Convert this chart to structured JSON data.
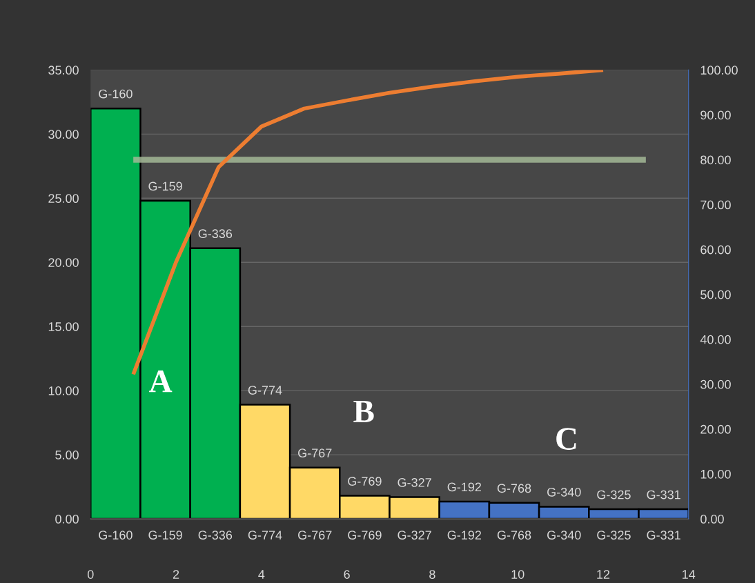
{
  "chart_data": [
    {
      "type": "bar",
      "categories": [
        "G-160",
        "G-159",
        "G-336",
        "G-774",
        "G-767",
        "G-769",
        "G-327",
        "G-192",
        "G-768",
        "G-340",
        "G-325",
        "G-331"
      ],
      "values": [
        32.0,
        24.8,
        21.1,
        8.9,
        4.0,
        1.8,
        1.7,
        1.35,
        1.25,
        0.95,
        0.75,
        0.75
      ],
      "colors": [
        "#00b050",
        "#00b050",
        "#00b050",
        "#ffd966",
        "#ffd966",
        "#ffd966",
        "#ffd966",
        "#4472c4",
        "#4472c4",
        "#4472c4",
        "#4472c4",
        "#4472c4"
      ],
      "value_labels": [
        "G-160",
        "G-159",
        "G-336",
        "G-774",
        "G-767",
        "G-769",
        "G-327",
        "G-192",
        "G-768",
        "G-340",
        "G-325",
        "G-331"
      ],
      "ylim": [
        0,
        35
      ],
      "yticks": [
        {
          "value": 0,
          "label": "0.00"
        },
        {
          "value": 5,
          "label": "5.00"
        },
        {
          "value": 10,
          "label": "10.00"
        },
        {
          "value": 15,
          "label": "15.00"
        },
        {
          "value": 20,
          "label": "20.00"
        },
        {
          "value": 25,
          "label": "25.00"
        },
        {
          "value": 30,
          "label": "30.00"
        },
        {
          "value": 35,
          "label": "35.00"
        }
      ],
      "grid": "y",
      "annotations": [
        "A",
        "B",
        "C"
      ]
    },
    {
      "type": "line",
      "series": [
        {
          "color": "#ed7d31",
          "x": [
            1,
            2,
            3,
            4,
            5,
            6,
            7,
            8,
            9,
            10,
            11,
            12
          ],
          "values": [
            32.2,
            57.2,
            78.4,
            87.4,
            91.4,
            93.2,
            94.9,
            96.3,
            97.5,
            98.5,
            99.2,
            100.0
          ]
        },
        {
          "color": "#a3b896",
          "x": [
            1,
            13
          ],
          "values": [
            80,
            80
          ]
        }
      ],
      "xlim": [
        0,
        14
      ],
      "xticks": [
        0,
        2,
        4,
        6,
        8,
        10,
        12,
        14
      ],
      "ylim": [
        0,
        100
      ],
      "yticks": [
        {
          "value": 0,
          "label": "0.00"
        },
        {
          "value": 10,
          "label": "10.00"
        },
        {
          "value": 20,
          "label": "20.00"
        },
        {
          "value": 30,
          "label": "30.00"
        },
        {
          "value": 40,
          "label": "40.00"
        },
        {
          "value": 50,
          "label": "50.00"
        },
        {
          "value": 60,
          "label": "60.00"
        },
        {
          "value": 70,
          "label": "70.00"
        },
        {
          "value": 80,
          "label": "80.00"
        },
        {
          "value": 90,
          "label": "90.00"
        },
        {
          "value": 100,
          "label": "100.00"
        }
      ]
    }
  ]
}
